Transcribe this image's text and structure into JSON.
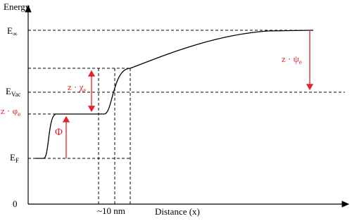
{
  "axes": {
    "y_label": "Energy",
    "x_label": "Distance (x)",
    "origin": "0"
  },
  "levels": {
    "e_inf": {
      "base": "E",
      "sub": "∞"
    },
    "e_vac": {
      "base": "E",
      "sub": "Vac"
    },
    "e_f": {
      "base": "E",
      "sub": "F"
    }
  },
  "annotations": {
    "phi_e": {
      "base": "z · φ",
      "sub": "e"
    },
    "chi_e": {
      "base": "z · χ",
      "sub": "e"
    },
    "psi_e": {
      "base": "z · ψ",
      "sub": "e"
    },
    "work_function": "Φ",
    "width": "~10 nm"
  }
}
